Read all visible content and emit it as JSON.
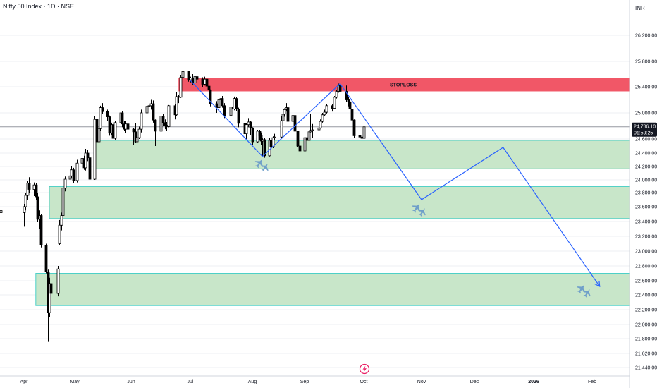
{
  "header": {
    "title": "Nifty 50 Index · 1D · NSE",
    "currency": "INR"
  },
  "price_badge": {
    "price": "24,786.10",
    "countdown": "01:59:25",
    "color": "#131722"
  },
  "colors": {
    "zone_fill": "#c8e6c9",
    "zone_border": "#4dd0c7",
    "stoploss_fill": "#f15767",
    "path_line": "#2962ff",
    "candle": "#000000",
    "grid": "#eceff3"
  },
  "stoploss_label": "STOPLOSS",
  "event_icon": "lightning-event-icon",
  "plane_icon": "airplane-icon",
  "chart_data": {
    "type": "candlestick",
    "title": "Nifty 50 Index · 1D · NSE",
    "y_ticks": [
      21440,
      21620,
      21800,
      22000,
      22200,
      22400,
      22600,
      22800,
      23000,
      23200,
      23400,
      23600,
      23800,
      24000,
      24200,
      24400,
      24600,
      25000,
      25400,
      25800,
      26200
    ],
    "y_tick_labels": [
      "21,440.00",
      "21,620.00",
      "21,800.00",
      "22,000.00",
      "22,200.00",
      "22,400.00",
      "22,600.00",
      "22,800.00",
      "23,000.00",
      "23,200.00",
      "23,400.00",
      "23,600.00",
      "23,800.00",
      "24,000.00",
      "24,200.00",
      "24,400.00",
      "24,600.00",
      "25,000.00",
      "25,400.00",
      "25,800.00",
      "26,200.00"
    ],
    "x_labels": [
      "Apr",
      "May",
      "Jun",
      "Jul",
      "Aug",
      "Sep",
      "Oct",
      "Nov",
      "Dec",
      "2026",
      "Feb"
    ],
    "x_label_dates": [
      "2025-04-01",
      "2025-05-01",
      "2025-06-01",
      "2025-07-01",
      "2025-08-01",
      "2025-09-01",
      "2025-10-01",
      "2025-11-01",
      "2025-12-01",
      "2026-01-01",
      "2026-02-01"
    ],
    "current_price": 24786.1,
    "zones": [
      {
        "name": "stoploss",
        "from": "2025-06-25",
        "low": 25330,
        "high": 25540
      },
      {
        "name": "demand-zone-1",
        "from": "2025-05-12",
        "low": 24165,
        "high": 24580
      },
      {
        "name": "demand-zone-2",
        "from": "2025-04-16",
        "low": 23440,
        "high": 23895
      },
      {
        "name": "demand-zone-3",
        "from": "2025-04-08",
        "low": 22255,
        "high": 22700
      }
    ],
    "projection_path": [
      {
        "date": "2025-07-01",
        "price": 25500
      },
      {
        "date": "2025-08-07",
        "price": 24350
      },
      {
        "date": "2025-09-19",
        "price": 25450
      },
      {
        "date": "2025-11-01",
        "price": 23700
      },
      {
        "date": "2025-12-16",
        "price": 24480
      },
      {
        "date": "2026-02-05",
        "price": 22520
      }
    ],
    "plane_markers": [
      {
        "date": "2025-08-07",
        "price": 24220
      },
      {
        "date": "2025-10-31",
        "price": 23560
      },
      {
        "date": "2026-01-28",
        "price": 22460
      }
    ],
    "candles": [
      {
        "d": "2025-03-28",
        "o": 23519,
        "h": 23620,
        "l": 23430,
        "c": 23547
      },
      {
        "d": "2025-04-01",
        "o": 23520,
        "h": 23640,
        "l": 23330,
        "c": 23600
      },
      {
        "d": "2025-04-02",
        "o": 23600,
        "h": 23800,
        "l": 23550,
        "c": 23760
      },
      {
        "d": "2025-04-03",
        "o": 23760,
        "h": 23980,
        "l": 23700,
        "c": 23950
      },
      {
        "d": "2025-04-04",
        "o": 23950,
        "h": 24040,
        "l": 23800,
        "c": 23850
      },
      {
        "d": "2025-04-07",
        "o": 23850,
        "h": 23960,
        "l": 23750,
        "c": 23920
      },
      {
        "d": "2025-04-08",
        "o": 23920,
        "h": 23950,
        "l": 23700,
        "c": 23740
      },
      {
        "d": "2025-04-09",
        "o": 23740,
        "h": 23800,
        "l": 23400,
        "c": 23430
      },
      {
        "d": "2025-04-10",
        "o": 23430,
        "h": 23550,
        "l": 23300,
        "c": 23480
      },
      {
        "d": "2025-04-11",
        "o": 23480,
        "h": 23500,
        "l": 23050,
        "c": 23080
      },
      {
        "d": "2025-04-14",
        "o": 23080,
        "h": 23100,
        "l": 22700,
        "c": 22720
      },
      {
        "d": "2025-04-15",
        "o": 22720,
        "h": 22750,
        "l": 21760,
        "c": 22160
      },
      {
        "d": "2025-04-16",
        "o": 22160,
        "h": 22640,
        "l": 22100,
        "c": 22560
      },
      {
        "d": "2025-04-17",
        "o": 22560,
        "h": 22600,
        "l": 22360,
        "c": 22420
      },
      {
        "d": "2025-04-21",
        "o": 22420,
        "h": 22800,
        "l": 22380,
        "c": 22760
      },
      {
        "d": "2025-04-22",
        "o": 23100,
        "h": 23420,
        "l": 23080,
        "c": 23350
      },
      {
        "d": "2025-04-23",
        "o": 23350,
        "h": 23520,
        "l": 23280,
        "c": 23480
      },
      {
        "d": "2025-04-24",
        "o": 23480,
        "h": 23900,
        "l": 23440,
        "c": 23870
      },
      {
        "d": "2025-04-25",
        "o": 23870,
        "h": 24050,
        "l": 23820,
        "c": 24010
      },
      {
        "d": "2025-04-28",
        "o": 24010,
        "h": 24100,
        "l": 23930,
        "c": 24060
      },
      {
        "d": "2025-04-29",
        "o": 24060,
        "h": 24200,
        "l": 24020,
        "c": 24150
      },
      {
        "d": "2025-04-30",
        "o": 24150,
        "h": 24180,
        "l": 23950,
        "c": 23990
      },
      {
        "d": "2025-05-02",
        "o": 23990,
        "h": 24300,
        "l": 23960,
        "c": 24250
      },
      {
        "d": "2025-05-05",
        "o": 24250,
        "h": 24380,
        "l": 24200,
        "c": 24320
      },
      {
        "d": "2025-05-06",
        "o": 24320,
        "h": 24360,
        "l": 24150,
        "c": 24180
      },
      {
        "d": "2025-05-07",
        "o": 24180,
        "h": 24460,
        "l": 24140,
        "c": 24400
      },
      {
        "d": "2025-05-08",
        "o": 24400,
        "h": 24450,
        "l": 24280,
        "c": 24330
      },
      {
        "d": "2025-05-09",
        "o": 24330,
        "h": 24360,
        "l": 23990,
        "c": 24010
      },
      {
        "d": "2025-05-12",
        "o": 24010,
        "h": 24950,
        "l": 24000,
        "c": 24900
      },
      {
        "d": "2025-05-13",
        "o": 24900,
        "h": 24960,
        "l": 24500,
        "c": 24560
      },
      {
        "d": "2025-05-14",
        "o": 24560,
        "h": 24800,
        "l": 24520,
        "c": 24760
      },
      {
        "d": "2025-05-15",
        "o": 24760,
        "h": 25110,
        "l": 24720,
        "c": 25080
      },
      {
        "d": "2025-05-16",
        "o": 25080,
        "h": 25150,
        "l": 24980,
        "c": 25020
      },
      {
        "d": "2025-05-19",
        "o": 25020,
        "h": 25050,
        "l": 24880,
        "c": 24940
      },
      {
        "d": "2025-05-20",
        "o": 24940,
        "h": 24960,
        "l": 24650,
        "c": 24690
      },
      {
        "d": "2025-05-21",
        "o": 24690,
        "h": 24850,
        "l": 24660,
        "c": 24820
      },
      {
        "d": "2025-05-22",
        "o": 24820,
        "h": 24860,
        "l": 24520,
        "c": 24610
      },
      {
        "d": "2025-05-23",
        "o": 24610,
        "h": 24880,
        "l": 24580,
        "c": 24850
      },
      {
        "d": "2025-05-26",
        "o": 24850,
        "h": 25080,
        "l": 24830,
        "c": 25000
      },
      {
        "d": "2025-05-27",
        "o": 25000,
        "h": 25030,
        "l": 24780,
        "c": 24830
      },
      {
        "d": "2025-05-28",
        "o": 24830,
        "h": 24870,
        "l": 24720,
        "c": 24750
      },
      {
        "d": "2025-05-29",
        "o": 24750,
        "h": 24880,
        "l": 24690,
        "c": 24830
      },
      {
        "d": "2025-05-30",
        "o": 24830,
        "h": 24860,
        "l": 24650,
        "c": 24750
      },
      {
        "d": "2025-06-02",
        "o": 24750,
        "h": 24770,
        "l": 24520,
        "c": 24710
      },
      {
        "d": "2025-06-03",
        "o": 24710,
        "h": 24840,
        "l": 24540,
        "c": 24560
      },
      {
        "d": "2025-06-04",
        "o": 24560,
        "h": 24650,
        "l": 24530,
        "c": 24620
      },
      {
        "d": "2025-06-05",
        "o": 24620,
        "h": 24790,
        "l": 24600,
        "c": 24750
      },
      {
        "d": "2025-06-06",
        "o": 24750,
        "h": 25050,
        "l": 24700,
        "c": 25000
      },
      {
        "d": "2025-06-09",
        "o": 25000,
        "h": 25160,
        "l": 24980,
        "c": 25100
      },
      {
        "d": "2025-06-10",
        "o": 25100,
        "h": 25200,
        "l": 25060,
        "c": 25110
      },
      {
        "d": "2025-06-11",
        "o": 25110,
        "h": 25200,
        "l": 25050,
        "c": 25140
      },
      {
        "d": "2025-06-12",
        "o": 25140,
        "h": 25190,
        "l": 24850,
        "c": 24890
      },
      {
        "d": "2025-06-13",
        "o": 24890,
        "h": 24900,
        "l": 24500,
        "c": 24720
      },
      {
        "d": "2025-06-16",
        "o": 24720,
        "h": 24970,
        "l": 24700,
        "c": 24950
      },
      {
        "d": "2025-06-17",
        "o": 24950,
        "h": 24980,
        "l": 24800,
        "c": 24850
      },
      {
        "d": "2025-06-18",
        "o": 24850,
        "h": 24900,
        "l": 24750,
        "c": 24810
      },
      {
        "d": "2025-06-19",
        "o": 24810,
        "h": 24860,
        "l": 24730,
        "c": 24790
      },
      {
        "d": "2025-06-20",
        "o": 24790,
        "h": 25120,
        "l": 24780,
        "c": 25110
      },
      {
        "d": "2025-06-23",
        "o": 25110,
        "h": 25130,
        "l": 24900,
        "c": 24970
      },
      {
        "d": "2025-06-24",
        "o": 24970,
        "h": 25320,
        "l": 24950,
        "c": 25250
      },
      {
        "d": "2025-06-25",
        "o": 25250,
        "h": 25270,
        "l": 25150,
        "c": 25240
      },
      {
        "d": "2025-06-26",
        "o": 25240,
        "h": 25580,
        "l": 25230,
        "c": 25550
      },
      {
        "d": "2025-06-27",
        "o": 25550,
        "h": 25680,
        "l": 25520,
        "c": 25640
      },
      {
        "d": "2025-06-30",
        "o": 25640,
        "h": 25650,
        "l": 25480,
        "c": 25510
      },
      {
        "d": "2025-07-01",
        "o": 25510,
        "h": 25560,
        "l": 25470,
        "c": 25540
      },
      {
        "d": "2025-07-02",
        "o": 25540,
        "h": 25600,
        "l": 25430,
        "c": 25460
      },
      {
        "d": "2025-07-03",
        "o": 25460,
        "h": 25580,
        "l": 25420,
        "c": 25560
      },
      {
        "d": "2025-07-04",
        "o": 25560,
        "h": 25620,
        "l": 25450,
        "c": 25520
      },
      {
        "d": "2025-07-07",
        "o": 25520,
        "h": 25550,
        "l": 25400,
        "c": 25440
      },
      {
        "d": "2025-07-08",
        "o": 25440,
        "h": 25560,
        "l": 25420,
        "c": 25520
      },
      {
        "d": "2025-07-09",
        "o": 25520,
        "h": 25550,
        "l": 25380,
        "c": 25410
      },
      {
        "d": "2025-07-10",
        "o": 25410,
        "h": 25430,
        "l": 25320,
        "c": 25350
      },
      {
        "d": "2025-07-11",
        "o": 25350,
        "h": 25360,
        "l": 25100,
        "c": 25140
      },
      {
        "d": "2025-07-14",
        "o": 25140,
        "h": 25180,
        "l": 25000,
        "c": 25080
      },
      {
        "d": "2025-07-15",
        "o": 25080,
        "h": 25240,
        "l": 25060,
        "c": 25200
      },
      {
        "d": "2025-07-16",
        "o": 25200,
        "h": 25250,
        "l": 25150,
        "c": 25220
      },
      {
        "d": "2025-07-17",
        "o": 25220,
        "h": 25260,
        "l": 25080,
        "c": 25110
      },
      {
        "d": "2025-07-18",
        "o": 25110,
        "h": 25150,
        "l": 24920,
        "c": 24960
      },
      {
        "d": "2025-07-21",
        "o": 24960,
        "h": 25110,
        "l": 24880,
        "c": 25090
      },
      {
        "d": "2025-07-22",
        "o": 25090,
        "h": 25180,
        "l": 25040,
        "c": 25060
      },
      {
        "d": "2025-07-23",
        "o": 25060,
        "h": 25250,
        "l": 25040,
        "c": 25220
      },
      {
        "d": "2025-07-24",
        "o": 25220,
        "h": 25240,
        "l": 25030,
        "c": 25060
      },
      {
        "d": "2025-07-25",
        "o": 25060,
        "h": 25080,
        "l": 24780,
        "c": 24840
      },
      {
        "d": "2025-07-28",
        "o": 24840,
        "h": 24900,
        "l": 24630,
        "c": 24680
      },
      {
        "d": "2025-07-29",
        "o": 24680,
        "h": 24840,
        "l": 24600,
        "c": 24820
      },
      {
        "d": "2025-07-30",
        "o": 24820,
        "h": 24920,
        "l": 24780,
        "c": 24860
      },
      {
        "d": "2025-07-31",
        "o": 24860,
        "h": 24880,
        "l": 24660,
        "c": 24770
      },
      {
        "d": "2025-08-01",
        "o": 24770,
        "h": 24780,
        "l": 24520,
        "c": 24560
      },
      {
        "d": "2025-08-04",
        "o": 24560,
        "h": 24740,
        "l": 24540,
        "c": 24720
      },
      {
        "d": "2025-08-05",
        "o": 24720,
        "h": 24740,
        "l": 24580,
        "c": 24650
      },
      {
        "d": "2025-08-06",
        "o": 24650,
        "h": 24700,
        "l": 24520,
        "c": 24570
      },
      {
        "d": "2025-08-07",
        "o": 24570,
        "h": 24610,
        "l": 24350,
        "c": 24590
      },
      {
        "d": "2025-08-08",
        "o": 24590,
        "h": 24620,
        "l": 24330,
        "c": 24360
      },
      {
        "d": "2025-08-11",
        "o": 24360,
        "h": 24620,
        "l": 24350,
        "c": 24580
      },
      {
        "d": "2025-08-12",
        "o": 24580,
        "h": 24670,
        "l": 24450,
        "c": 24490
      },
      {
        "d": "2025-08-13",
        "o": 24490,
        "h": 24640,
        "l": 24470,
        "c": 24620
      },
      {
        "d": "2025-08-14",
        "o": 24620,
        "h": 24680,
        "l": 24590,
        "c": 24630
      },
      {
        "d": "2025-08-18",
        "o": 24630,
        "h": 24950,
        "l": 24620,
        "c": 24880
      },
      {
        "d": "2025-08-19",
        "o": 24880,
        "h": 25000,
        "l": 24850,
        "c": 24980
      },
      {
        "d": "2025-08-20",
        "o": 24980,
        "h": 25070,
        "l": 24940,
        "c": 25050
      },
      {
        "d": "2025-08-21",
        "o": 25050,
        "h": 25150,
        "l": 25020,
        "c": 25080
      },
      {
        "d": "2025-08-22",
        "o": 25080,
        "h": 25100,
        "l": 24850,
        "c": 24870
      },
      {
        "d": "2025-08-25",
        "o": 24870,
        "h": 25000,
        "l": 24860,
        "c": 24960
      },
      {
        "d": "2025-08-26",
        "o": 24960,
        "h": 24980,
        "l": 24700,
        "c": 24720
      },
      {
        "d": "2025-08-28",
        "o": 24720,
        "h": 24730,
        "l": 24480,
        "c": 24500
      },
      {
        "d": "2025-08-29",
        "o": 24500,
        "h": 24550,
        "l": 24400,
        "c": 24430
      },
      {
        "d": "2025-09-01",
        "o": 24430,
        "h": 24640,
        "l": 24400,
        "c": 24620
      },
      {
        "d": "2025-09-02",
        "o": 24620,
        "h": 24760,
        "l": 24540,
        "c": 24580
      },
      {
        "d": "2025-09-03",
        "o": 24580,
        "h": 24730,
        "l": 24560,
        "c": 24710
      },
      {
        "d": "2025-09-04",
        "o": 24710,
        "h": 24980,
        "l": 24700,
        "c": 24730
      },
      {
        "d": "2025-09-05",
        "o": 24730,
        "h": 24830,
        "l": 24620,
        "c": 24740
      },
      {
        "d": "2025-09-08",
        "o": 24740,
        "h": 24880,
        "l": 24720,
        "c": 24770
      },
      {
        "d": "2025-09-09",
        "o": 24770,
        "h": 24900,
        "l": 24760,
        "c": 24870
      },
      {
        "d": "2025-09-10",
        "o": 24870,
        "h": 25000,
        "l": 24850,
        "c": 24970
      },
      {
        "d": "2025-09-11",
        "o": 24970,
        "h": 25050,
        "l": 24950,
        "c": 25010
      },
      {
        "d": "2025-09-12",
        "o": 25010,
        "h": 25140,
        "l": 24990,
        "c": 25110
      },
      {
        "d": "2025-09-15",
        "o": 25110,
        "h": 25140,
        "l": 25020,
        "c": 25070
      },
      {
        "d": "2025-09-16",
        "o": 25070,
        "h": 25260,
        "l": 25060,
        "c": 25240
      },
      {
        "d": "2025-09-17",
        "o": 25240,
        "h": 25350,
        "l": 25220,
        "c": 25330
      },
      {
        "d": "2025-09-18",
        "o": 25330,
        "h": 25450,
        "l": 25310,
        "c": 25420
      },
      {
        "d": "2025-09-19",
        "o": 25420,
        "h": 25440,
        "l": 25280,
        "c": 25330
      },
      {
        "d": "2025-09-22",
        "o": 25330,
        "h": 25420,
        "l": 25170,
        "c": 25200
      },
      {
        "d": "2025-09-23",
        "o": 25200,
        "h": 25250,
        "l": 25100,
        "c": 25170
      },
      {
        "d": "2025-09-24",
        "o": 25170,
        "h": 25180,
        "l": 25030,
        "c": 25060
      },
      {
        "d": "2025-09-25",
        "o": 25060,
        "h": 25080,
        "l": 24860,
        "c": 24890
      },
      {
        "d": "2025-09-26",
        "o": 24890,
        "h": 24900,
        "l": 24620,
        "c": 24650
      },
      {
        "d": "2025-09-29",
        "o": 24650,
        "h": 24780,
        "l": 24600,
        "c": 24630
      },
      {
        "d": "2025-09-30",
        "o": 24630,
        "h": 24730,
        "l": 24590,
        "c": 24610
      },
      {
        "d": "2025-10-01",
        "o": 24610,
        "h": 24800,
        "l": 24600,
        "c": 24786.1
      }
    ]
  }
}
